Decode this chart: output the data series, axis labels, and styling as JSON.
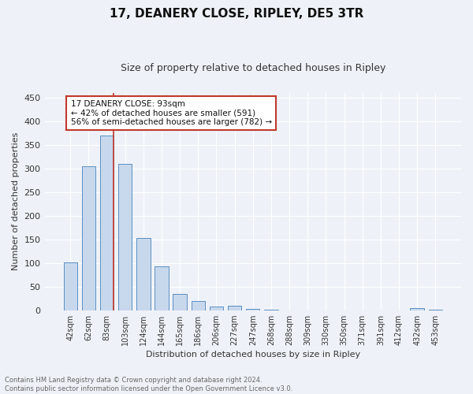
{
  "title1": "17, DEANERY CLOSE, RIPLEY, DE5 3TR",
  "title2": "Size of property relative to detached houses in Ripley",
  "xlabel": "Distribution of detached houses by size in Ripley",
  "ylabel": "Number of detached properties",
  "categories": [
    "42sqm",
    "62sqm",
    "83sqm",
    "103sqm",
    "124sqm",
    "144sqm",
    "165sqm",
    "186sqm",
    "206sqm",
    "227sqm",
    "247sqm",
    "268sqm",
    "288sqm",
    "309sqm",
    "330sqm",
    "350sqm",
    "371sqm",
    "391sqm",
    "412sqm",
    "432sqm",
    "453sqm"
  ],
  "values": [
    101,
    305,
    370,
    310,
    153,
    93,
    35,
    20,
    8,
    10,
    3,
    1,
    0,
    0,
    0,
    0,
    0,
    0,
    0,
    5,
    1
  ],
  "bar_color": "#c8d8ec",
  "bar_edge_color": "#5a8fc2",
  "vline_index": 2,
  "vline_color": "#c0392b",
  "annotation_text": "17 DEANERY CLOSE: 93sqm\n← 42% of detached houses are smaller (591)\n56% of semi-detached houses are larger (782) →",
  "annotation_box_color": "white",
  "annotation_box_edge_color": "#c0392b",
  "ylim": [
    0,
    460
  ],
  "yticks": [
    0,
    50,
    100,
    150,
    200,
    250,
    300,
    350,
    400,
    450
  ],
  "footer_text": "Contains HM Land Registry data © Crown copyright and database right 2024.\nContains public sector information licensed under the Open Government Licence v3.0.",
  "background_color": "#eef2f8",
  "grid_color": "white",
  "title1_fontsize": 11,
  "title2_fontsize": 9
}
